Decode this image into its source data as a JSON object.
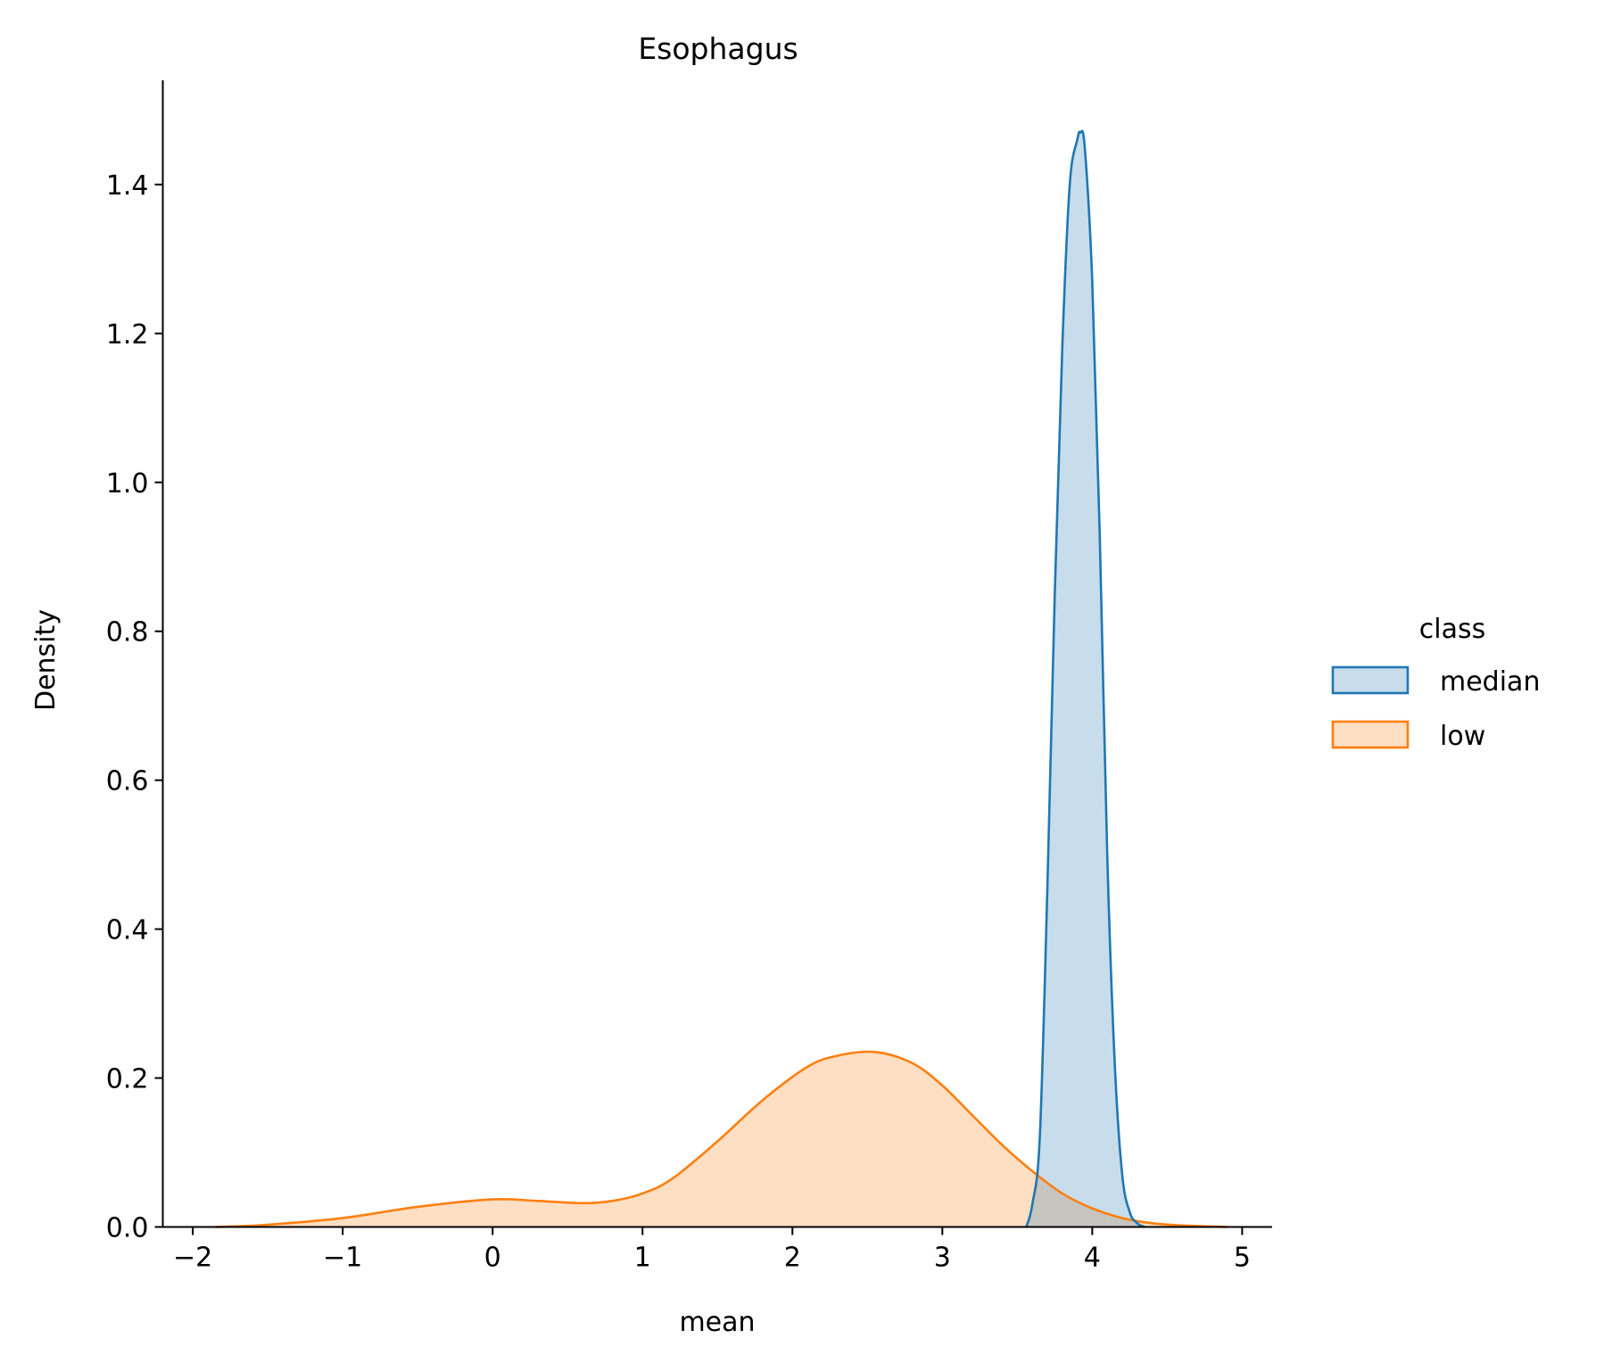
{
  "chart_data": {
    "type": "area",
    "title": "Esophagus",
    "xlabel": "mean",
    "ylabel": "Density",
    "xlim": [
      -2.2,
      5.2
    ],
    "ylim": [
      0,
      1.54
    ],
    "x_ticks": [
      -2,
      -1,
      0,
      1,
      2,
      3,
      4,
      5
    ],
    "x_tick_labels": [
      "−2",
      "−1",
      "0",
      "1",
      "2",
      "3",
      "4",
      "5"
    ],
    "y_ticks": [
      0.0,
      0.2,
      0.4,
      0.6,
      0.8,
      1.0,
      1.2,
      1.4
    ],
    "y_tick_labels": [
      "0.0",
      "0.2",
      "0.4",
      "0.6",
      "0.8",
      "1.0",
      "1.2",
      "1.4"
    ],
    "grid": false,
    "legend": {
      "title": "class",
      "placement": "right-outside",
      "entries": [
        "median",
        "low"
      ]
    },
    "series": [
      {
        "name": "median",
        "color": "#1f77b4",
        "fill_opacity": 0.25,
        "x": [
          3.56,
          3.6,
          3.65,
          3.7,
          3.75,
          3.8,
          3.85,
          3.9,
          3.92,
          3.95,
          4.0,
          4.05,
          4.1,
          4.15,
          4.2,
          4.25,
          4.3,
          4.35
        ],
        "y": [
          0.0,
          0.03,
          0.12,
          0.45,
          0.85,
          1.18,
          1.4,
          1.46,
          1.47,
          1.45,
          1.27,
          0.93,
          0.5,
          0.22,
          0.07,
          0.02,
          0.005,
          0.0
        ]
      },
      {
        "name": "low",
        "color": "#ff7f0e",
        "fill_opacity": 0.25,
        "x": [
          -1.85,
          -1.5,
          -1.0,
          -0.5,
          0.0,
          0.3,
          0.6,
          0.8,
          1.0,
          1.2,
          1.5,
          1.8,
          2.1,
          2.3,
          2.55,
          2.8,
          3.0,
          3.2,
          3.4,
          3.6,
          3.8,
          4.0,
          4.2,
          4.4,
          4.6,
          4.9
        ],
        "y": [
          0.0,
          0.003,
          0.012,
          0.027,
          0.037,
          0.035,
          0.032,
          0.035,
          0.045,
          0.065,
          0.115,
          0.17,
          0.215,
          0.23,
          0.235,
          0.22,
          0.19,
          0.15,
          0.11,
          0.075,
          0.045,
          0.025,
          0.012,
          0.005,
          0.002,
          0.0
        ]
      }
    ]
  }
}
